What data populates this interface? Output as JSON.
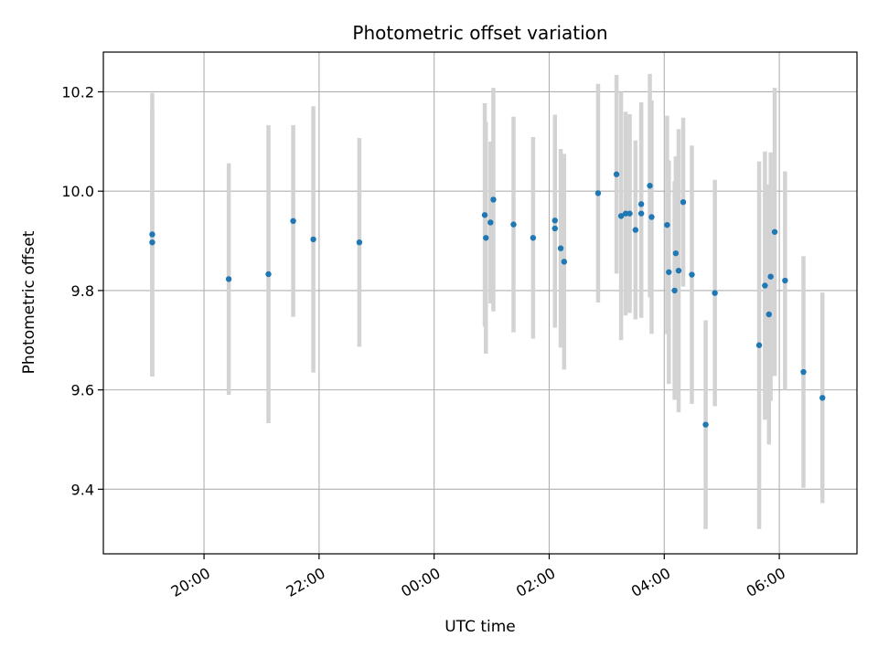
{
  "chart_data": {
    "type": "scatter",
    "title": "Photometric offset variation",
    "xlabel": "UTC time",
    "ylabel": "Photometric offset",
    "x_unit": "hours since 00:00 UTC",
    "xlim": [
      -5.75,
      7.35
    ],
    "ylim": [
      9.27,
      10.28
    ],
    "grid": true,
    "x_ticks": [
      {
        "value": -4,
        "label": "20:00"
      },
      {
        "value": -2,
        "label": "22:00"
      },
      {
        "value": 0,
        "label": "00:00"
      },
      {
        "value": 2,
        "label": "02:00"
      },
      {
        "value": 4,
        "label": "04:00"
      },
      {
        "value": 6,
        "label": "06:00"
      }
    ],
    "y_ticks": [
      {
        "value": 9.4,
        "label": "9.4"
      },
      {
        "value": 9.6,
        "label": "9.6"
      },
      {
        "value": 9.8,
        "label": "9.8"
      },
      {
        "value": 10.0,
        "label": "10.0"
      },
      {
        "value": 10.2,
        "label": "10.2"
      }
    ],
    "colors": {
      "point": "#1f77b4",
      "errorbar": "#d3d3d3",
      "grid": "#b0b0b0"
    },
    "points": [
      {
        "x": -4.9,
        "y": 9.913,
        "err": 0.285
      },
      {
        "x": -4.9,
        "y": 9.897,
        "err": 0.27
      },
      {
        "x": -3.57,
        "y": 9.823,
        "err": 0.233
      },
      {
        "x": -2.88,
        "y": 9.833,
        "err": 0.3
      },
      {
        "x": -2.45,
        "y": 9.94,
        "err": 0.193
      },
      {
        "x": -2.1,
        "y": 9.903,
        "err": 0.268
      },
      {
        "x": -1.3,
        "y": 9.897,
        "err": 0.21
      },
      {
        "x": 0.88,
        "y": 9.952,
        "err": 0.225
      },
      {
        "x": 0.9,
        "y": 9.906,
        "err": 0.233
      },
      {
        "x": 0.98,
        "y": 9.937,
        "err": 0.163
      },
      {
        "x": 1.03,
        "y": 9.983,
        "err": 0.225
      },
      {
        "x": 1.38,
        "y": 9.933,
        "err": 0.217
      },
      {
        "x": 1.72,
        "y": 9.906,
        "err": 0.203
      },
      {
        "x": 2.1,
        "y": 9.941,
        "err": 0.213
      },
      {
        "x": 2.1,
        "y": 9.925,
        "err": 0.2
      },
      {
        "x": 2.2,
        "y": 9.885,
        "err": 0.2
      },
      {
        "x": 2.26,
        "y": 9.858,
        "err": 0.217
      },
      {
        "x": 2.85,
        "y": 9.996,
        "err": 0.22
      },
      {
        "x": 3.17,
        "y": 10.034,
        "err": 0.2
      },
      {
        "x": 3.25,
        "y": 9.95,
        "err": 0.25
      },
      {
        "x": 3.33,
        "y": 9.955,
        "err": 0.205
      },
      {
        "x": 3.4,
        "y": 9.955,
        "err": 0.2
      },
      {
        "x": 3.5,
        "y": 9.922,
        "err": 0.18
      },
      {
        "x": 3.6,
        "y": 9.974,
        "err": 0.205
      },
      {
        "x": 3.6,
        "y": 9.955,
        "err": 0.21
      },
      {
        "x": 3.75,
        "y": 10.011,
        "err": 0.225
      },
      {
        "x": 3.78,
        "y": 9.948,
        "err": 0.235
      },
      {
        "x": 4.05,
        "y": 9.932,
        "err": 0.22
      },
      {
        "x": 4.08,
        "y": 9.837,
        "err": 0.225
      },
      {
        "x": 4.18,
        "y": 9.8,
        "err": 0.22
      },
      {
        "x": 4.2,
        "y": 9.875,
        "err": 0.195
      },
      {
        "x": 4.25,
        "y": 9.84,
        "err": 0.285
      },
      {
        "x": 4.33,
        "y": 9.978,
        "err": 0.17
      },
      {
        "x": 4.48,
        "y": 9.832,
        "err": 0.26
      },
      {
        "x": 4.72,
        "y": 9.53,
        "err": 0.21
      },
      {
        "x": 4.88,
        "y": 9.795,
        "err": 0.228
      },
      {
        "x": 5.65,
        "y": 9.69,
        "err": 0.37
      },
      {
        "x": 5.75,
        "y": 9.81,
        "err": 0.27
      },
      {
        "x": 5.82,
        "y": 9.752,
        "err": 0.262
      },
      {
        "x": 5.85,
        "y": 9.828,
        "err": 0.25
      },
      {
        "x": 5.92,
        "y": 9.918,
        "err": 0.29
      },
      {
        "x": 6.1,
        "y": 9.82,
        "err": 0.22
      },
      {
        "x": 6.42,
        "y": 9.636,
        "err": 0.233
      },
      {
        "x": 6.75,
        "y": 9.584,
        "err": 0.212
      }
    ]
  }
}
